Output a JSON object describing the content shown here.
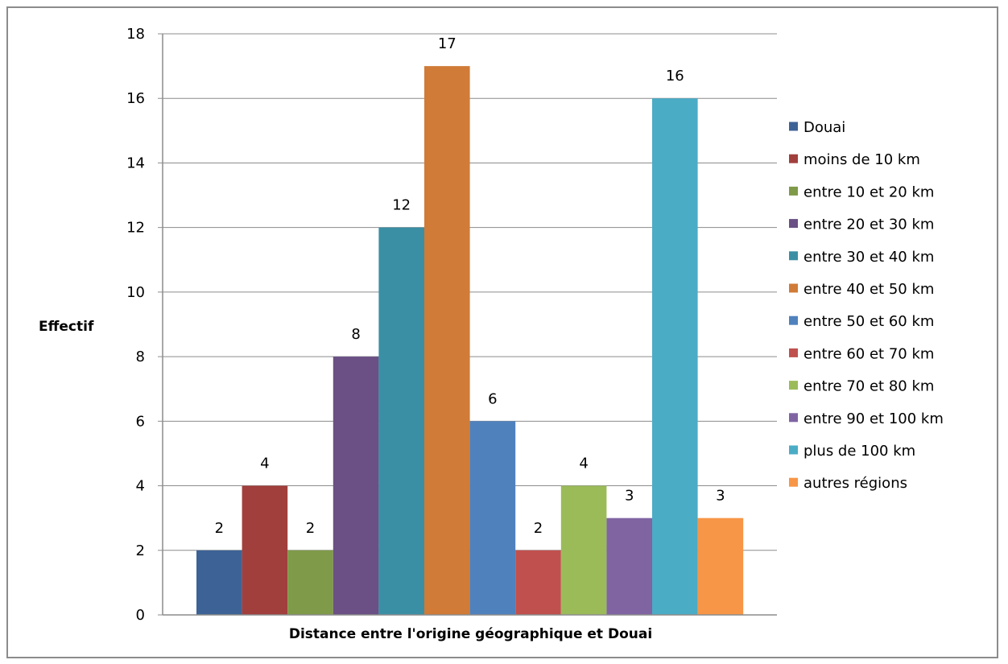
{
  "chart_data": {
    "type": "bar",
    "title": "",
    "xlabel": "Distance entre l'origine géographique et Douai",
    "ylabel": "Effectif",
    "ylim": [
      0,
      18
    ],
    "yticks": [
      "0",
      "2",
      "4",
      "6",
      "8",
      "10",
      "12",
      "14",
      "16",
      "18"
    ],
    "grid": true,
    "legend_position": "right",
    "series": [
      {
        "name": "Douai",
        "value": 2,
        "label": "2",
        "color": "#3D6396"
      },
      {
        "name": "moins de 10 km",
        "value": 4,
        "label": "4",
        "color": "#A13F3C"
      },
      {
        "name": "entre 10 et 20 km",
        "value": 2,
        "label": "2",
        "color": "#7F9A48"
      },
      {
        "name": "entre 20 et 30 km",
        "value": 8,
        "label": "8",
        "color": "#6A5084"
      },
      {
        "name": "entre 30 et 40 km",
        "value": 12,
        "label": "12",
        "color": "#3A8FA4"
      },
      {
        "name": "entre 40 et 50 km",
        "value": 17,
        "label": "17",
        "color": "#D07B37"
      },
      {
        "name": "entre 50 et 60 km",
        "value": 6,
        "label": "6",
        "color": "#4F81BD"
      },
      {
        "name": "entre 60 et 70 km",
        "value": 2,
        "label": "2",
        "color": "#C0504D"
      },
      {
        "name": "entre 70 et 80 km",
        "value": 4,
        "label": "4",
        "color": "#9BBB59"
      },
      {
        "name": "entre 90 et 100 km",
        "value": 3,
        "label": "3",
        "color": "#8064A2"
      },
      {
        "name": "plus de 100 km",
        "value": 16,
        "label": "16",
        "color": "#4BACC6"
      },
      {
        "name": "autres régions",
        "value": 3,
        "label": "3",
        "color": "#F79646"
      }
    ]
  }
}
